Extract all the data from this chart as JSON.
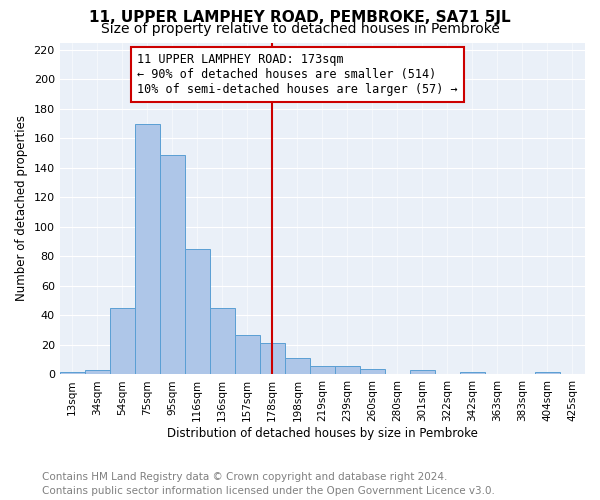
{
  "title": "11, UPPER LAMPHEY ROAD, PEMBROKE, SA71 5JL",
  "subtitle": "Size of property relative to detached houses in Pembroke",
  "xlabel": "Distribution of detached houses by size in Pembroke",
  "ylabel": "Number of detached properties",
  "bin_labels": [
    "13sqm",
    "34sqm",
    "54sqm",
    "75sqm",
    "95sqm",
    "116sqm",
    "136sqm",
    "157sqm",
    "178sqm",
    "198sqm",
    "219sqm",
    "239sqm",
    "260sqm",
    "280sqm",
    "301sqm",
    "322sqm",
    "342sqm",
    "363sqm",
    "383sqm",
    "404sqm",
    "425sqm"
  ],
  "bar_values": [
    2,
    3,
    45,
    170,
    149,
    85,
    45,
    27,
    21,
    11,
    6,
    6,
    4,
    0,
    3,
    0,
    2,
    0,
    0,
    2,
    0
  ],
  "bar_color": "#aec6e8",
  "bar_edge_color": "#5a9fd4",
  "vline_x": 8,
  "vline_color": "#cc0000",
  "annotation_text": "11 UPPER LAMPHEY ROAD: 173sqm\n← 90% of detached houses are smaller (514)\n10% of semi-detached houses are larger (57) →",
  "annotation_box_color": "white",
  "annotation_box_edge_color": "#cc0000",
  "ylim": [
    0,
    225
  ],
  "yticks": [
    0,
    20,
    40,
    60,
    80,
    100,
    120,
    140,
    160,
    180,
    200,
    220
  ],
  "bg_color": "#eaf0f8",
  "footer_line1": "Contains HM Land Registry data © Crown copyright and database right 2024.",
  "footer_line2": "Contains public sector information licensed under the Open Government Licence v3.0.",
  "title_fontsize": 11,
  "subtitle_fontsize": 10,
  "annotation_fontsize": 8.5,
  "footer_fontsize": 7.5,
  "ylabel_fontsize": 8.5,
  "xlabel_fontsize": 8.5
}
